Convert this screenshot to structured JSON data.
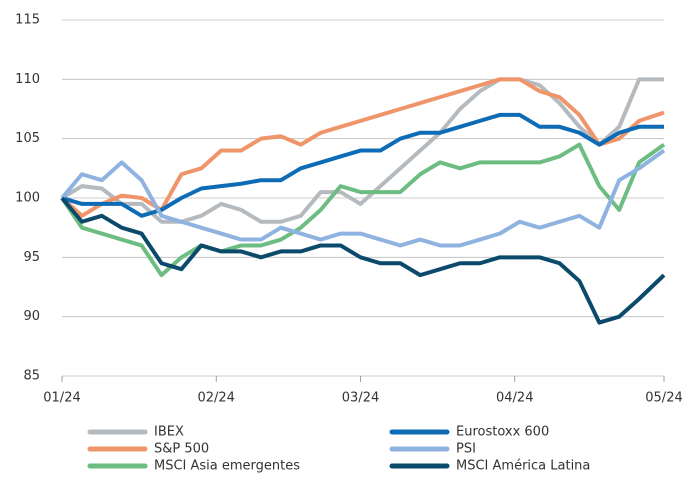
{
  "chart_data": {
    "type": "line",
    "x": [
      0,
      4,
      8,
      12,
      16,
      20,
      24,
      28,
      32,
      36,
      40,
      44,
      48,
      52,
      56,
      60,
      64,
      68,
      72,
      76,
      80,
      84,
      88,
      92,
      96,
      100,
      104,
      108,
      112,
      116,
      121
    ],
    "xlim": [
      0,
      121
    ],
    "xticks": [
      {
        "value": 0,
        "label": "01/24"
      },
      {
        "value": 31,
        "label": "02/24"
      },
      {
        "value": 60,
        "label": "03/24"
      },
      {
        "value": 91,
        "label": "04/24"
      },
      {
        "value": 121,
        "label": "05/24"
      }
    ],
    "ylim": [
      85,
      115
    ],
    "yticks": [
      85,
      90,
      95,
      100,
      105,
      110,
      115
    ],
    "grid": true,
    "series": [
      {
        "name": "IBEX",
        "color": "#b5babe",
        "values": [
          100,
          101,
          100.8,
          99.5,
          99.5,
          98,
          98,
          98.5,
          99.5,
          99,
          98,
          98,
          98.5,
          100.5,
          100.5,
          99.5,
          101,
          102.5,
          104,
          105.5,
          107.5,
          109,
          110,
          110,
          109.5,
          108,
          106,
          104.5,
          106,
          110,
          110
        ]
      },
      {
        "name": "S&P 500",
        "color": "#f0956a",
        "values": [
          100,
          98.5,
          99.5,
          100.2,
          100,
          99,
          102,
          102.5,
          104,
          104,
          105,
          105.2,
          104.5,
          105.5,
          106,
          106.5,
          107,
          107.5,
          108,
          108.5,
          109,
          109.5,
          110,
          110,
          109,
          108.5,
          107,
          104.5,
          105,
          106.5,
          107.2
        ]
      },
      {
        "name": "MSCI Asia emergentes",
        "color": "#6dbd82",
        "values": [
          100,
          97.5,
          97,
          96.5,
          96,
          93.5,
          95,
          96,
          95.5,
          96,
          96,
          96.5,
          97.5,
          99,
          101,
          100.5,
          100.5,
          100.5,
          102,
          103,
          102.5,
          103,
          103,
          103,
          103,
          103.5,
          104.5,
          101,
          99,
          103,
          104.5
        ]
      },
      {
        "name": "Eurostoxx 600",
        "color": "#0d6cb5",
        "values": [
          100,
          99.5,
          99.5,
          99.5,
          98.5,
          99,
          100,
          100.8,
          101,
          101.2,
          101.5,
          101.5,
          102.5,
          103,
          103.5,
          104,
          104,
          105,
          105.5,
          105.5,
          106,
          106.5,
          107,
          107,
          106,
          106,
          105.5,
          104.5,
          105.5,
          106,
          106
        ]
      },
      {
        "name": "PSI",
        "color": "#8fb3e0",
        "values": [
          100,
          102,
          101.5,
          103,
          101.5,
          98.5,
          98,
          97.5,
          97,
          96.5,
          96.5,
          97.5,
          97,
          96.5,
          97,
          97,
          96.5,
          96,
          96.5,
          96,
          96,
          96.5,
          97,
          98,
          97.5,
          98,
          98.5,
          97.5,
          101.5,
          102.5,
          104
        ]
      },
      {
        "name": "MSCI América Latina",
        "color": "#0b4a6b",
        "values": [
          100,
          98,
          98.5,
          97.5,
          97,
          94.5,
          94,
          96,
          95.5,
          95.5,
          95,
          95.5,
          95.5,
          96,
          96,
          95,
          94.5,
          94.5,
          93.5,
          94,
          94.5,
          94.5,
          95,
          95,
          95,
          94.5,
          93,
          89.5,
          90,
          91.5,
          93.5
        ]
      }
    ]
  }
}
